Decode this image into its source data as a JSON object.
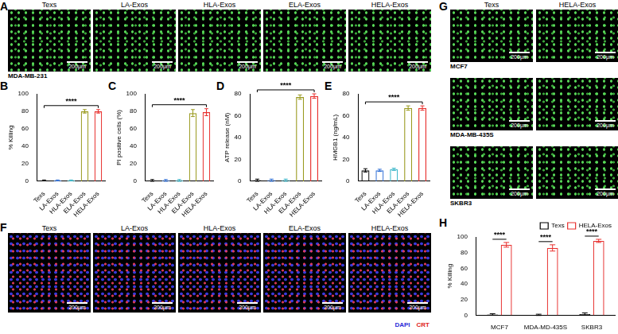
{
  "panels": {
    "A": {
      "label": "A",
      "columns": [
        "Texs",
        "LA-Exos",
        "HLA-Exos",
        "ELA-Exos",
        "HELA-Exos"
      ],
      "cell_line": "MDA-MB-231",
      "scale_bar": "200μm"
    },
    "F": {
      "label": "F",
      "columns": [
        "Texs",
        "LA-Exos",
        "HLA-Exos",
        "ELA-Exos",
        "HELA-Exos"
      ],
      "scale_bar": "200μm",
      "stains": [
        {
          "name": "DAPI",
          "color": "#2a2ad8"
        },
        {
          "name": "CRT",
          "color": "#e02020"
        }
      ]
    },
    "G": {
      "label": "G",
      "columns": [
        "Texs",
        "HELA-Exos"
      ],
      "rows": [
        "MCF7",
        "MDA-MB-435S",
        "SKBR3"
      ],
      "scale_bar": "200μm"
    }
  },
  "chart_data": [
    {
      "panel": "B",
      "type": "bar",
      "y_label": "% Killing",
      "categories": [
        "Texs",
        "LA-Exos",
        "HLA-Exos",
        "ELA-Exos",
        "HELA-Exos"
      ],
      "values": [
        1,
        1,
        1,
        80,
        80
      ],
      "errors": [
        0.5,
        0.5,
        0.5,
        2,
        2
      ],
      "colors": [
        "#000000",
        "#2f6fd6",
        "#3ab5c8",
        "#9a9a1e",
        "#e8312f"
      ],
      "ylim": [
        0,
        100
      ],
      "yticks": [
        0,
        20,
        40,
        60,
        80,
        100
      ],
      "annotations": [
        "****"
      ]
    },
    {
      "panel": "C",
      "type": "bar",
      "y_label": "PI positive cells (%)",
      "categories": [
        "Texs",
        "LA-Exos",
        "HLA-Exos",
        "ELA-Exos",
        "HELA-Exos"
      ],
      "values": [
        1,
        1,
        1,
        78,
        79
      ],
      "errors": [
        1,
        1,
        1,
        4,
        4
      ],
      "colors": [
        "#000000",
        "#2f6fd6",
        "#3ab5c8",
        "#9a9a1e",
        "#e8312f"
      ],
      "ylim": [
        0,
        100
      ],
      "yticks": [
        0,
        20,
        40,
        60,
        80,
        100
      ],
      "annotations": [
        "****"
      ]
    },
    {
      "panel": "D",
      "type": "bar",
      "y_label": "ATP release (nM)",
      "categories": [
        "Texs",
        "LA-Exos",
        "HLA-Exos",
        "ELA-Exos",
        "HELA-Exos"
      ],
      "values": [
        1,
        1,
        1,
        77,
        78
      ],
      "errors": [
        1,
        1,
        1,
        2,
        2
      ],
      "colors": [
        "#000000",
        "#2f6fd6",
        "#3ab5c8",
        "#9a9a1e",
        "#e8312f"
      ],
      "ylim": [
        0,
        80
      ],
      "yticks": [
        0,
        20,
        40,
        60,
        80
      ],
      "annotations": [
        "****"
      ]
    },
    {
      "panel": "E",
      "type": "bar",
      "y_label": "HMGB1 (ng/mL)",
      "categories": [
        "Texs",
        "LA-Exos",
        "HLA-Exos",
        "ELA-Exos",
        "HELA-Exos"
      ],
      "values": [
        10,
        10,
        11,
        67,
        67
      ],
      "errors": [
        1.5,
        1,
        1,
        2,
        2
      ],
      "colors": [
        "#000000",
        "#2f6fd6",
        "#3ab5c8",
        "#9a9a1e",
        "#e8312f"
      ],
      "ylim": [
        0,
        80
      ],
      "yticks": [
        0,
        20,
        40,
        60,
        80
      ],
      "annotations": [
        "****"
      ]
    },
    {
      "panel": "H",
      "type": "bar",
      "y_label": "% Killing",
      "categories": [
        "MCF7",
        "MDA-MD-435S",
        "SKBR3"
      ],
      "series": [
        {
          "name": "Texs",
          "color": "#000000",
          "values": [
            1,
            0.5,
            1.5
          ],
          "errors": [
            1,
            0.8,
            1.5
          ]
        },
        {
          "name": "HELA-Exos",
          "color": "#e8312f",
          "values": [
            90,
            86,
            95
          ],
          "errors": [
            3,
            4,
            2
          ]
        }
      ],
      "legend": "top-right",
      "ylim": [
        0,
        100
      ],
      "yticks": [
        0,
        20,
        40,
        60,
        80,
        100
      ],
      "annotations": [
        "****",
        "****",
        "****"
      ]
    }
  ]
}
